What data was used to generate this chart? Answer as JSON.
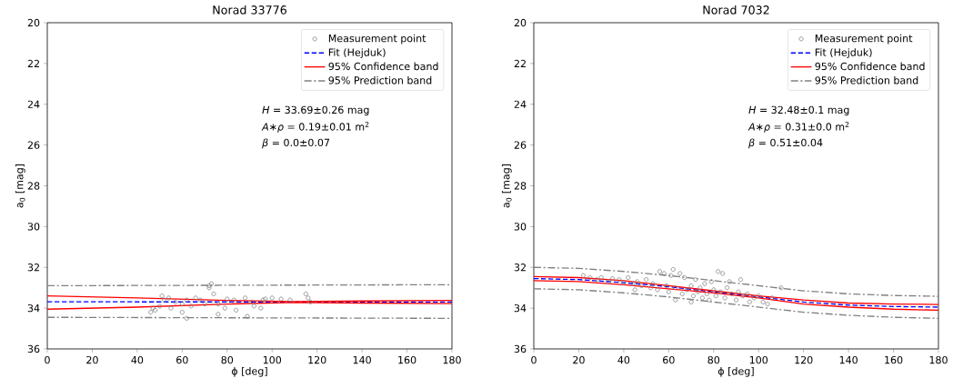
{
  "chart_data": [
    {
      "type": "line",
      "title": "Norad 33776",
      "xlabel": "ϕ [deg]",
      "ylabel": "a$_{0}$ [mag]",
      "xlim": [
        0,
        180
      ],
      "ylim": [
        36,
        20
      ],
      "xticks": [
        0,
        20,
        40,
        60,
        80,
        100,
        120,
        140,
        160,
        180
      ],
      "yticks": [
        20,
        22,
        24,
        26,
        28,
        30,
        32,
        34,
        36
      ],
      "legend": "top right",
      "grid": false,
      "annotations": [
        "*H* = 33.69±0.26 mag",
        "*A∗ρ* = 0.19±0.01 m$^{2}$",
        "*β* = 0.0±0.07"
      ],
      "series": [
        {
          "type": "scatter",
          "name": "Measurement point",
          "color": "#808080",
          "marker": "circle",
          "x": [
            46,
            47,
            48,
            50,
            51,
            52,
            54,
            55,
            57,
            60,
            62,
            64,
            66,
            68,
            70,
            72,
            72,
            73,
            74,
            76,
            79,
            83,
            84,
            88,
            89,
            91,
            92,
            95,
            96,
            97,
            100,
            104,
            108,
            115,
            116,
            117,
            60,
            62,
            76,
            80
          ],
          "values": [
            34.2,
            34.0,
            34.1,
            33.9,
            33.4,
            33.6,
            33.5,
            34.0,
            33.7,
            33.8,
            33.6,
            33.9,
            33.5,
            33.6,
            33.8,
            32.9,
            33.0,
            32.8,
            33.3,
            33.8,
            34.0,
            33.6,
            34.1,
            33.5,
            34.4,
            33.7,
            33.9,
            34.0,
            33.6,
            33.55,
            33.5,
            33.55,
            33.6,
            33.3,
            33.5,
            33.7,
            34.2,
            34.5,
            34.3,
            33.55
          ]
        },
        {
          "name": "Fit (Hejduk)",
          "color": "#0000ff",
          "line_style": "dashed",
          "x": [
            0,
            180
          ],
          "values": [
            33.69,
            33.7
          ]
        },
        {
          "name": "95% Confidence band",
          "color": "#ff0000",
          "line_style": "solid",
          "x": [
            0,
            40,
            80,
            110,
            140,
            180
          ],
          "values": [
            33.4,
            33.5,
            33.62,
            33.68,
            33.65,
            33.62
          ]
        },
        {
          "color": "#ff0000",
          "line_style": "solid",
          "x": [
            0,
            40,
            80,
            110,
            140,
            180
          ],
          "values": [
            34.05,
            33.95,
            33.8,
            33.72,
            33.75,
            33.78
          ]
        },
        {
          "name": "95% Prediction band",
          "color": "#808080",
          "line_style": "dashdot",
          "x": [
            0,
            180
          ],
          "values": [
            32.9,
            32.85
          ]
        },
        {
          "color": "#808080",
          "line_style": "dashdot",
          "x": [
            0,
            180
          ],
          "values": [
            34.45,
            34.5
          ]
        }
      ]
    },
    {
      "type": "line",
      "title": "Norad 7032",
      "xlabel": "ϕ [deg]",
      "ylabel": "a$_{0}$ [mag]",
      "xlim": [
        0,
        180
      ],
      "ylim": [
        36,
        20
      ],
      "xticks": [
        0,
        20,
        40,
        60,
        80,
        100,
        120,
        140,
        160,
        180
      ],
      "yticks": [
        20,
        22,
        24,
        26,
        28,
        30,
        32,
        34,
        36
      ],
      "legend": "top right",
      "grid": false,
      "annotations": [
        "*H* = 32.48±0.1 mag",
        "*A∗ρ* = 0.31±0.0 m$^{2}$",
        "*β* = 0.51±0.04"
      ],
      "series": [
        {
          "type": "scatter",
          "name": "Measurement point",
          "color": "#808080",
          "marker": "circle",
          "x": [
            22,
            25,
            28,
            30,
            33,
            35,
            38,
            40,
            42,
            44,
            46,
            48,
            50,
            52,
            53,
            55,
            56,
            58,
            59,
            60,
            61,
            62,
            63,
            65,
            66,
            67,
            68,
            70,
            71,
            72,
            73,
            74,
            75,
            76,
            77,
            78,
            79,
            80,
            81,
            82,
            83,
            84,
            85,
            86,
            87,
            88,
            90,
            91,
            92,
            93,
            95,
            96,
            98,
            100,
            102,
            104,
            106,
            110,
            63,
            70,
            45
          ],
          "values": [
            32.4,
            32.5,
            32.6,
            32.5,
            32.7,
            32.55,
            32.6,
            32.75,
            32.5,
            32.8,
            32.7,
            32.9,
            32.6,
            33.0,
            32.8,
            33.1,
            32.2,
            32.3,
            32.9,
            33.2,
            32.4,
            32.1,
            33.0,
            32.3,
            33.3,
            32.5,
            33.1,
            32.9,
            33.4,
            32.6,
            33.2,
            33.0,
            33.5,
            32.8,
            33.3,
            33.6,
            32.7,
            33.1,
            33.4,
            32.2,
            33.2,
            32.3,
            33.5,
            33.0,
            32.7,
            33.3,
            33.6,
            33.2,
            32.6,
            33.4,
            33.3,
            33.7,
            33.5,
            33.4,
            33.7,
            33.8,
            33.5,
            33.0,
            33.6,
            33.7,
            33.1
          ]
        },
        {
          "name": "Fit (Hejduk)",
          "color": "#0000ff",
          "line_style": "dashed",
          "x": [
            0,
            20,
            40,
            60,
            80,
            100,
            120,
            140,
            160,
            180
          ],
          "values": [
            32.55,
            32.6,
            32.75,
            32.95,
            33.2,
            33.45,
            33.7,
            33.85,
            33.92,
            33.95
          ]
        },
        {
          "name": "95% Confidence band",
          "color": "#ff0000",
          "line_style": "solid",
          "x": [
            0,
            20,
            40,
            60,
            80,
            100,
            120,
            140,
            160,
            180
          ],
          "values": [
            32.45,
            32.5,
            32.65,
            32.9,
            33.15,
            33.4,
            33.6,
            33.75,
            33.8,
            33.82
          ]
        },
        {
          "color": "#ff0000",
          "line_style": "solid",
          "x": [
            0,
            20,
            40,
            60,
            80,
            100,
            120,
            140,
            160,
            180
          ],
          "values": [
            32.65,
            32.7,
            32.85,
            33.05,
            33.25,
            33.5,
            33.8,
            33.95,
            34.05,
            34.1
          ]
        },
        {
          "name": "95% Prediction band",
          "color": "#808080",
          "line_style": "dashdot",
          "x": [
            0,
            20,
            40,
            60,
            80,
            100,
            120,
            140,
            160,
            180
          ],
          "values": [
            32.0,
            32.05,
            32.2,
            32.4,
            32.65,
            32.9,
            33.15,
            33.3,
            33.38,
            33.42
          ]
        },
        {
          "color": "#808080",
          "line_style": "dashdot",
          "x": [
            0,
            20,
            40,
            60,
            80,
            100,
            120,
            140,
            160,
            180
          ],
          "values": [
            33.05,
            33.1,
            33.25,
            33.45,
            33.7,
            33.95,
            34.2,
            34.35,
            34.45,
            34.5
          ]
        }
      ]
    }
  ]
}
